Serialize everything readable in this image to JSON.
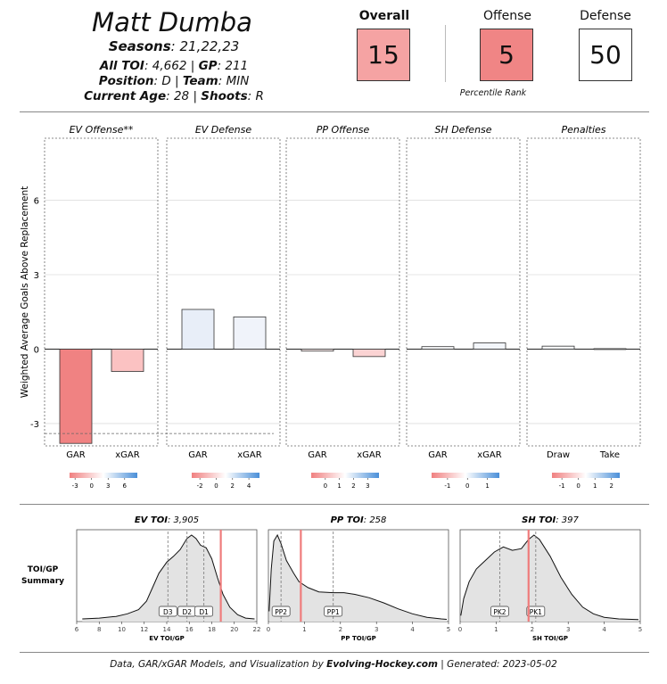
{
  "player": {
    "name": "Matt Dumba",
    "seasons_label": "Seasons",
    "seasons_value": "21,22,23",
    "toi_label": "All TOI",
    "toi_value": "4,662",
    "gp_label": "GP",
    "gp_value": "211",
    "position_label": "Position",
    "position_value": "D",
    "team_label": "Team",
    "team_value": "MIN",
    "age_label": "Current Age",
    "age_value": "28",
    "shoots_label": "Shoots",
    "shoots_value": "R"
  },
  "ranks": {
    "overall_label": "Overall",
    "overall_value": "15",
    "overall_color": "#f5a3a3",
    "offense_label": "Offense",
    "offense_value": "5",
    "offense_color": "#f08585",
    "defense_label": "Defense",
    "defense_value": "50",
    "defense_color": "#ffffff",
    "caption": "Percentile Rank"
  },
  "gar_chart": {
    "ylabel": "Weighted Average Goals Above Replacement",
    "yticks": [
      -3,
      0,
      3,
      6
    ],
    "ylim": [
      -3.9,
      8.5
    ],
    "panels": [
      {
        "title": "EV Offense**",
        "bars": [
          {
            "label": "GAR",
            "value": -3.8,
            "color": "#f08282"
          },
          {
            "label": "xGAR",
            "value": -0.9,
            "color": "#fbc2c2"
          }
        ],
        "ref_line": -3.4,
        "scale": {
          "ticks": [
            "-3",
            "0",
            "3",
            "6"
          ],
          "min": -4,
          "max": 8.3
        }
      },
      {
        "title": "EV Defense",
        "bars": [
          {
            "label": "GAR",
            "value": 1.6,
            "color": "#e8eef8"
          },
          {
            "label": "xGAR",
            "value": 1.3,
            "color": "#f0f3fa"
          }
        ],
        "scale": {
          "ticks": [
            "-2",
            "0",
            "2",
            "4"
          ],
          "min": -3,
          "max": 5.3
        }
      },
      {
        "title": "PP Offense",
        "bars": [
          {
            "label": "GAR",
            "value": -0.08,
            "color": "#fdf0f0"
          },
          {
            "label": "xGAR",
            "value": -0.3,
            "color": "#fbd3d3"
          }
        ],
        "scale": {
          "ticks": [
            "0",
            "1",
            "2",
            "3"
          ],
          "min": -1,
          "max": 3.8
        }
      },
      {
        "title": "SH Defense",
        "bars": [
          {
            "label": "GAR",
            "value": 0.1,
            "color": "#fafbfd"
          },
          {
            "label": "xGAR",
            "value": 0.25,
            "color": "#f3f6fb"
          }
        ],
        "scale": {
          "ticks": [
            "-1",
            "0",
            "1"
          ],
          "min": -1.8,
          "max": 1.6
        }
      },
      {
        "title": "Penalties",
        "bars": [
          {
            "label": "Draw",
            "value": 0.12,
            "color": "#f7f9fc"
          },
          {
            "label": "Take",
            "value": 0.02,
            "color": "#fdfdfe"
          }
        ],
        "scale": {
          "ticks": [
            "-1",
            "0",
            "1",
            "2"
          ],
          "min": -1.6,
          "max": 2.5
        }
      }
    ]
  },
  "toi": {
    "side_label": "TOI/GP\nSummary",
    "panels": [
      {
        "title_label": "EV TOI",
        "title_value": "3,905",
        "xlabel": "EV TOI/GP",
        "xmin": 6,
        "xmax": 22,
        "ticks": [
          6,
          8,
          10,
          12,
          14,
          16,
          18,
          20,
          22
        ],
        "player_value": 18.8,
        "markers": [
          {
            "label": "D3",
            "x": 14.1
          },
          {
            "label": "D2",
            "x": 15.8
          },
          {
            "label": "D1",
            "x": 17.3
          }
        ],
        "density": [
          [
            6.5,
            0.01
          ],
          [
            8,
            0.02
          ],
          [
            9.5,
            0.04
          ],
          [
            10.5,
            0.07
          ],
          [
            11.5,
            0.12
          ],
          [
            12.2,
            0.22
          ],
          [
            12.8,
            0.4
          ],
          [
            13.3,
            0.55
          ],
          [
            14,
            0.68
          ],
          [
            14.6,
            0.75
          ],
          [
            15.2,
            0.83
          ],
          [
            15.8,
            0.96
          ],
          [
            16.2,
            1.0
          ],
          [
            16.6,
            0.96
          ],
          [
            17.0,
            0.88
          ],
          [
            17.5,
            0.85
          ],
          [
            18.0,
            0.72
          ],
          [
            18.5,
            0.5
          ],
          [
            19.0,
            0.3
          ],
          [
            19.6,
            0.15
          ],
          [
            20.3,
            0.06
          ],
          [
            21,
            0.02
          ],
          [
            21.8,
            0.01
          ]
        ]
      },
      {
        "title_label": "PP TOI",
        "title_value": "258",
        "xlabel": "PP TOI/GP",
        "xmin": 0,
        "xmax": 5,
        "ticks": [
          0,
          1,
          2,
          3,
          4,
          5
        ],
        "player_value": 0.9,
        "markers": [
          {
            "label": "PP2",
            "x": 0.35
          },
          {
            "label": "PP1",
            "x": 1.8
          }
        ],
        "density": [
          [
            0.02,
            0.1
          ],
          [
            0.08,
            0.6
          ],
          [
            0.15,
            0.93
          ],
          [
            0.25,
            1.0
          ],
          [
            0.35,
            0.9
          ],
          [
            0.5,
            0.7
          ],
          [
            0.7,
            0.55
          ],
          [
            0.85,
            0.45
          ],
          [
            1.1,
            0.38
          ],
          [
            1.4,
            0.33
          ],
          [
            1.8,
            0.32
          ],
          [
            2.1,
            0.32
          ],
          [
            2.4,
            0.3
          ],
          [
            2.8,
            0.26
          ],
          [
            3.2,
            0.2
          ],
          [
            3.6,
            0.13
          ],
          [
            4.0,
            0.07
          ],
          [
            4.4,
            0.03
          ],
          [
            4.8,
            0.01
          ],
          [
            4.95,
            0.005
          ]
        ]
      },
      {
        "title_label": "SH TOI",
        "title_value": "397",
        "xlabel": "SH TOI/GP",
        "xmin": 0,
        "xmax": 5,
        "ticks": [
          0,
          1,
          2,
          3,
          4,
          5
        ],
        "player_value": 1.9,
        "markers": [
          {
            "label": "PK2",
            "x": 1.1
          },
          {
            "label": "PK1",
            "x": 2.1
          }
        ],
        "density": [
          [
            0.02,
            0.05
          ],
          [
            0.1,
            0.25
          ],
          [
            0.25,
            0.45
          ],
          [
            0.45,
            0.6
          ],
          [
            0.7,
            0.7
          ],
          [
            0.95,
            0.8
          ],
          [
            1.2,
            0.86
          ],
          [
            1.45,
            0.82
          ],
          [
            1.7,
            0.84
          ],
          [
            1.9,
            0.95
          ],
          [
            2.05,
            1.0
          ],
          [
            2.2,
            0.95
          ],
          [
            2.5,
            0.75
          ],
          [
            2.8,
            0.5
          ],
          [
            3.1,
            0.3
          ],
          [
            3.4,
            0.15
          ],
          [
            3.7,
            0.07
          ],
          [
            4.0,
            0.03
          ],
          [
            4.4,
            0.01
          ],
          [
            4.95,
            0.003
          ]
        ]
      }
    ]
  },
  "footer": {
    "prefix": "Data, GAR/xGAR Models, and Visualization by ",
    "brand": "Evolving-Hockey.com",
    "suffix": " | Generated: 2023-05-02"
  }
}
